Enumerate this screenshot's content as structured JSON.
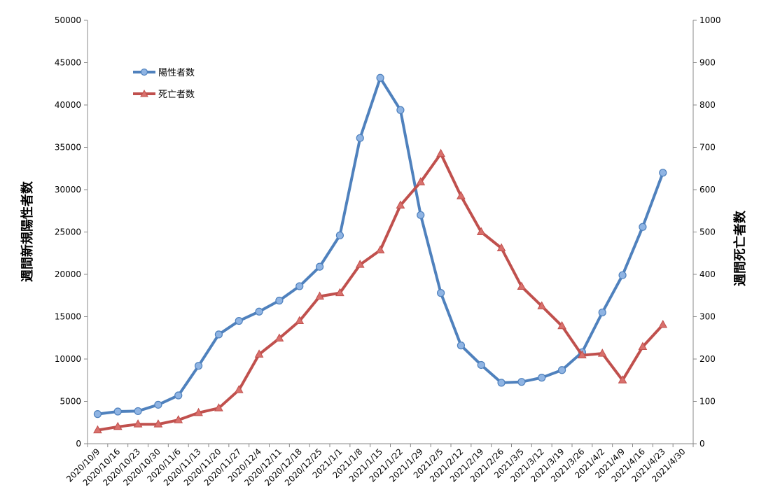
{
  "chart_data": {
    "type": "line",
    "title": "",
    "xlabel": "",
    "ylabel": "週間新規陽性者数",
    "y2label": "週間死亡者数",
    "ylim": [
      0,
      50000
    ],
    "y2lim": [
      0,
      1000
    ],
    "yticks": [
      "0",
      "5000",
      "10000",
      "15000",
      "20000",
      "25000",
      "30000",
      "35000",
      "40000",
      "45000",
      "50000"
    ],
    "y2ticks": [
      "0",
      "100",
      "200",
      "300",
      "400",
      "500",
      "600",
      "700",
      "800",
      "900",
      "1000"
    ],
    "grid": false,
    "legend_position": "top-left",
    "categories": [
      "2020/10/9",
      "2020/10/16",
      "2020/10/23",
      "2020/10/30",
      "2020/11/6",
      "2020/11/13",
      "2020/11/20",
      "2020/11/27",
      "2020/12/4",
      "2020/12/11",
      "2020/12/18",
      "2020/12/25",
      "2021/1/1",
      "2021/1/8",
      "2021/1/15",
      "2021/1/22",
      "2021/1/29",
      "2021/2/5",
      "2021/2/12",
      "2021/2/19",
      "2021/2/26",
      "2021/3/5",
      "2021/3/12",
      "2021/3/19",
      "2021/3/26",
      "2021/4/2",
      "2021/4/9",
      "2021/4/16",
      "2021/4/23",
      "2021/4/30"
    ],
    "series": [
      {
        "name": "陽性者数",
        "axis": "left",
        "color": "#4f81bd",
        "marker": "circle",
        "values": [
          3500,
          3800,
          3850,
          4600,
          5700,
          9200,
          12900,
          14500,
          15600,
          16900,
          18600,
          20900,
          24600,
          36100,
          43200,
          39400,
          27000,
          17800,
          11600,
          9300,
          7200,
          7300,
          7800,
          8700,
          10800,
          15500,
          19900,
          25600,
          32000,
          null
        ]
      },
      {
        "name": "死亡者数",
        "axis": "right",
        "color": "#c0504d",
        "marker": "triangle",
        "values": [
          32,
          40,
          46,
          46,
          56,
          73,
          84,
          127,
          211,
          249,
          290,
          348,
          356,
          423,
          457,
          563,
          618,
          685,
          585,
          500,
          462,
          371,
          325,
          278,
          209,
          213,
          150,
          229,
          281,
          null
        ]
      }
    ]
  }
}
